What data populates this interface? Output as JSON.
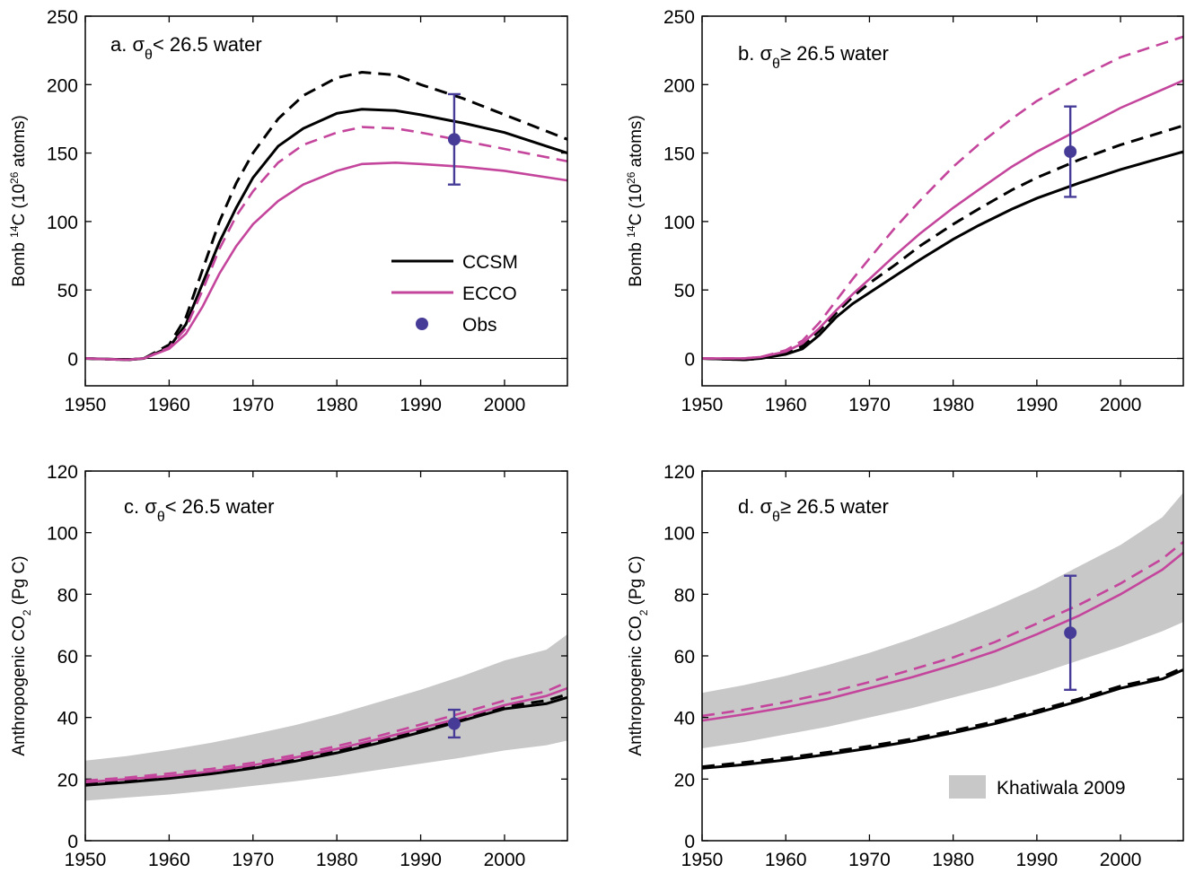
{
  "chart_data": [
    {
      "type": "line",
      "title": [
        "a. σ",
        "θ",
        "< 26.5 water"
      ],
      "ylabel": [
        {
          "text": "Bomb "
        },
        {
          "text": "14",
          "script": "super"
        },
        {
          "text": "C (10"
        },
        {
          "text": "26",
          "script": "super"
        },
        {
          "text": " atoms)"
        }
      ],
      "x": [
        1950,
        1955,
        1957,
        1960,
        1962,
        1964,
        1966,
        1968,
        1970,
        1973,
        1976,
        1980,
        1983,
        1987,
        1990,
        1995,
        2000,
        2007.5
      ],
      "xlim": [
        1950,
        2007.5
      ],
      "xticks": [
        1950,
        1960,
        1970,
        1980,
        1990,
        2000
      ],
      "ylim": [
        -20,
        250
      ],
      "yticks": [
        0,
        50,
        100,
        150,
        200,
        250
      ],
      "zero_line": true,
      "legend": "center right",
      "series": [
        {
          "name": "CCSM",
          "color": "#000000",
          "dashed": false,
          "values": [
            0,
            -1,
            0,
            8,
            25,
            55,
            85,
            110,
            132,
            155,
            168,
            179,
            182,
            181,
            178,
            172,
            165,
            150
          ]
        },
        {
          "color": "#000000",
          "dashed": true,
          "values": [
            0,
            -1,
            0,
            10,
            30,
            65,
            100,
            128,
            150,
            175,
            192,
            205,
            209,
            207,
            200,
            190,
            178,
            160
          ]
        },
        {
          "name": "ECCO",
          "color": "#c4459c",
          "dashed": false,
          "values": [
            0,
            -1,
            0,
            7,
            18,
            38,
            62,
            82,
            98,
            115,
            127,
            137,
            142,
            143,
            142,
            140,
            137,
            130
          ]
        },
        {
          "color": "#c4459c",
          "dashed": true,
          "values": [
            0,
            -1,
            0,
            8,
            22,
            50,
            80,
            104,
            122,
            143,
            156,
            165,
            169,
            168,
            165,
            159,
            153,
            144
          ]
        }
      ],
      "obs": {
        "name": "Obs",
        "color": "#463c98",
        "x": 1994,
        "value": 160,
        "error": 33
      }
    },
    {
      "type": "line",
      "title": [
        "b. σ",
        "θ",
        "≥ 26.5 water"
      ],
      "ylabel": [
        {
          "text": "Bomb "
        },
        {
          "text": "14",
          "script": "super"
        },
        {
          "text": "C (10"
        },
        {
          "text": "26",
          "script": "super"
        },
        {
          "text": " atoms)"
        }
      ],
      "x": [
        1950,
        1955,
        1957,
        1960,
        1962,
        1964,
        1966,
        1968,
        1970,
        1973,
        1976,
        1980,
        1983,
        1987,
        1990,
        1995,
        2000,
        2007.5
      ],
      "xlim": [
        1950,
        2007.5
      ],
      "xticks": [
        1950,
        1960,
        1970,
        1980,
        1990,
        2000
      ],
      "ylim": [
        -20,
        250
      ],
      "yticks": [
        0,
        50,
        100,
        150,
        200,
        250
      ],
      "zero_line": true,
      "series": [
        {
          "color": "#000000",
          "dashed": false,
          "values": [
            0,
            -1,
            0,
            3,
            7,
            17,
            30,
            40,
            48,
            60,
            72,
            87,
            97,
            109,
            117,
            128,
            138,
            151
          ]
        },
        {
          "color": "#000000",
          "dashed": true,
          "values": [
            0,
            -1,
            0,
            4,
            9,
            20,
            33,
            45,
            55,
            68,
            82,
            98,
            109,
            123,
            132,
            145,
            156,
            170
          ]
        },
        {
          "color": "#c4459c",
          "dashed": false,
          "values": [
            0,
            0,
            1,
            5,
            11,
            22,
            35,
            47,
            58,
            75,
            91,
            110,
            123,
            140,
            151,
            167,
            183,
            203
          ]
        },
        {
          "color": "#c4459c",
          "dashed": true,
          "values": [
            0,
            0,
            1,
            6,
            13,
            26,
            42,
            58,
            73,
            95,
            115,
            140,
            156,
            175,
            188,
            205,
            220,
            235
          ]
        }
      ],
      "obs": {
        "color": "#463c98",
        "x": 1994,
        "value": 151,
        "error": 33
      }
    },
    {
      "type": "line",
      "title": [
        "c. σ",
        "θ",
        "< 26.5 water"
      ],
      "ylabel": [
        {
          "text": "Anthropogenic CO"
        },
        {
          "text": "2",
          "script": "sub"
        },
        {
          "text": " (Pg C)"
        }
      ],
      "x": [
        1950,
        1955,
        1960,
        1965,
        1970,
        1975,
        1980,
        1985,
        1990,
        1995,
        2000,
        2005,
        2007.5
      ],
      "xlim": [
        1950,
        2007.5
      ],
      "xticks": [
        1950,
        1960,
        1970,
        1980,
        1990,
        2000
      ],
      "ylim": [
        0,
        120
      ],
      "yticks": [
        0,
        20,
        40,
        60,
        80,
        100,
        120
      ],
      "band": {
        "color": "#c8c8c8",
        "low": [
          13,
          14,
          15,
          16.3,
          17.8,
          19.3,
          21,
          23,
          25,
          27,
          29.3,
          31,
          32.5
        ],
        "high": [
          26,
          27.5,
          29.5,
          31.8,
          34.5,
          37.5,
          41,
          45,
          49,
          53.5,
          58.5,
          62,
          67
        ]
      },
      "series": [
        {
          "color": "#000000",
          "dashed": false,
          "values": [
            18,
            19,
            20.2,
            21.7,
            23.5,
            25.8,
            28.5,
            31.7,
            35.2,
            39,
            42.8,
            44.5,
            46.5
          ]
        },
        {
          "color": "#000000",
          "dashed": true,
          "values": [
            18.5,
            19.5,
            20.7,
            22.2,
            24,
            26.3,
            29,
            32.3,
            35.8,
            39.6,
            43.5,
            45.5,
            47.5
          ]
        },
        {
          "color": "#c4459c",
          "dashed": false,
          "values": [
            19,
            20,
            21,
            22.5,
            24.5,
            27,
            29.8,
            33,
            36.5,
            40,
            44,
            47,
            49.5
          ]
        },
        {
          "color": "#c4459c",
          "dashed": true,
          "values": [
            19.5,
            20.5,
            21.8,
            23.3,
            25.3,
            27.8,
            30.7,
            34,
            37.7,
            41.5,
            45.5,
            48.5,
            51.5
          ]
        }
      ],
      "obs": {
        "color": "#463c98",
        "x": 1994,
        "value": 38,
        "error": 4.5
      }
    },
    {
      "type": "line",
      "title": [
        "d. σ",
        "θ",
        "≥ 26.5 water"
      ],
      "ylabel": [
        {
          "text": "Anthropogenic CO"
        },
        {
          "text": "2",
          "script": "sub"
        },
        {
          "text": " (Pg C)"
        }
      ],
      "x": [
        1950,
        1955,
        1960,
        1965,
        1970,
        1975,
        1980,
        1985,
        1990,
        1995,
        2000,
        2005,
        2007.5
      ],
      "xlim": [
        1950,
        2007.5
      ],
      "xticks": [
        1950,
        1960,
        1970,
        1980,
        1990,
        2000
      ],
      "ylim": [
        0,
        120
      ],
      "yticks": [
        0,
        20,
        40,
        60,
        80,
        100,
        120
      ],
      "legend": "lower right",
      "band": {
        "name": "Khatiwala 2009",
        "color": "#c8c8c8",
        "low": [
          30,
          32,
          34.5,
          37,
          40,
          43,
          46.5,
          50,
          54,
          58.5,
          63,
          68,
          71
        ],
        "high": [
          48,
          50.5,
          53.5,
          57,
          61,
          65.5,
          70.5,
          76,
          82,
          89,
          96,
          105,
          113
        ]
      },
      "series": [
        {
          "color": "#000000",
          "dashed": false,
          "values": [
            23.5,
            24.7,
            26.2,
            28,
            30,
            32.3,
            35,
            38,
            41.5,
            45.3,
            49.5,
            52.5,
            55.5
          ]
        },
        {
          "color": "#000000",
          "dashed": true,
          "values": [
            24,
            25.4,
            26.9,
            28.7,
            30.7,
            33,
            35.7,
            38.7,
            42.2,
            46,
            50.2,
            53.2,
            56.2
          ]
        },
        {
          "color": "#c4459c",
          "dashed": false,
          "values": [
            39,
            41,
            43.3,
            46,
            49.5,
            53,
            57,
            61.5,
            67,
            73,
            80,
            88,
            93.5
          ]
        },
        {
          "color": "#c4459c",
          "dashed": true,
          "values": [
            40.5,
            42.5,
            45,
            48,
            51.5,
            55.5,
            59.5,
            64.5,
            70.5,
            76.5,
            83.5,
            91.5,
            97
          ]
        }
      ],
      "obs": {
        "color": "#463c98",
        "x": 1994,
        "value": 67.5,
        "error": 18.5
      }
    }
  ]
}
